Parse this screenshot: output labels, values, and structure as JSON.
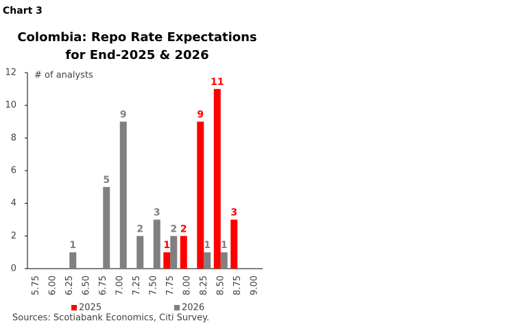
{
  "chart_label": "Chart 3",
  "chart_data": {
    "type": "bar",
    "title": [
      "Colombia: Repo Rate Expectations",
      "for End-2025 & 2026"
    ],
    "y_axis_label": "# of analysts",
    "categories": [
      "5.75",
      "6.00",
      "6.25",
      "6.50",
      "6.75",
      "7.00",
      "7.25",
      "7.50",
      "7.75",
      "8.00",
      "8.25",
      "8.50",
      "8.75",
      "9.00"
    ],
    "series": [
      {
        "name": "2025",
        "color": "#ff0000",
        "values": [
          null,
          null,
          null,
          null,
          null,
          null,
          null,
          null,
          1,
          2,
          9,
          11,
          3,
          null
        ]
      },
      {
        "name": "2026",
        "color": "#808080",
        "values": [
          null,
          null,
          1,
          null,
          5,
          9,
          2,
          3,
          2,
          null,
          1,
          1,
          null,
          null
        ]
      }
    ],
    "ylim": [
      0,
      12
    ],
    "yticks": [
      0,
      2,
      4,
      6,
      8,
      10,
      12
    ],
    "grid": false,
    "legend": "bottom"
  },
  "source": "Sources: Scotiabank Economics, Citi Survey."
}
